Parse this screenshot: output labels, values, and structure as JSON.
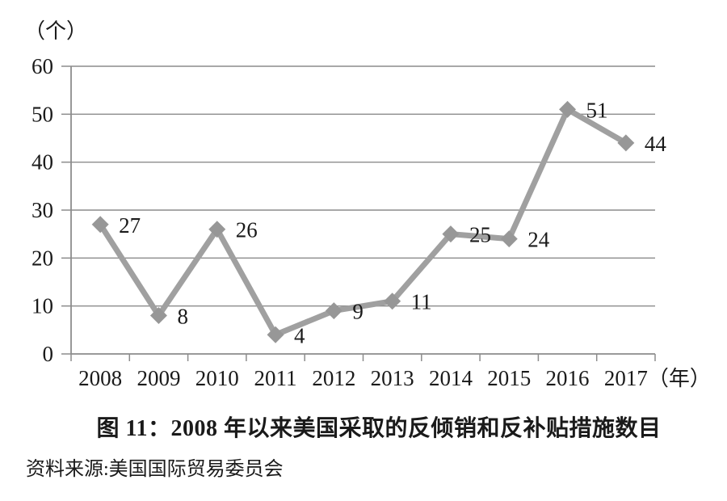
{
  "caption": {
    "title": "图 11：2008 年以来美国采取的反倾销和反补贴措施数目",
    "source": "资料来源:美国国际贸易委员会"
  },
  "chart_data": {
    "type": "line",
    "title": "图 11：2008 年以来美国采取的反倾销和反补贴措施数目",
    "categories": [
      "2008",
      "2009",
      "2010",
      "2011",
      "2012",
      "2013",
      "2014",
      "2015",
      "2016",
      "2017"
    ],
    "values": [
      27,
      8,
      26,
      4,
      9,
      11,
      25,
      24,
      51,
      44
    ],
    "data_labels": [
      "27",
      "8",
      "26",
      "4",
      "9",
      "11",
      "25",
      "24",
      "51",
      "44"
    ],
    "y_unit_label": "（个）",
    "x_unit_label": "（年）",
    "ylim": [
      0,
      60
    ],
    "ytick_step": 10,
    "ytick_labels": [
      "0",
      "10",
      "20",
      "30",
      "40",
      "50",
      "60"
    ],
    "grid": true,
    "legend": "none",
    "marker": "diamond",
    "colors": {
      "line": "#a0a0a0",
      "marker": "#979797",
      "grid": "#8c8c8c",
      "axis": "#8c8c8c",
      "text": "#1a1a1a"
    },
    "source": "资料来源:美国国际贸易委员会"
  }
}
